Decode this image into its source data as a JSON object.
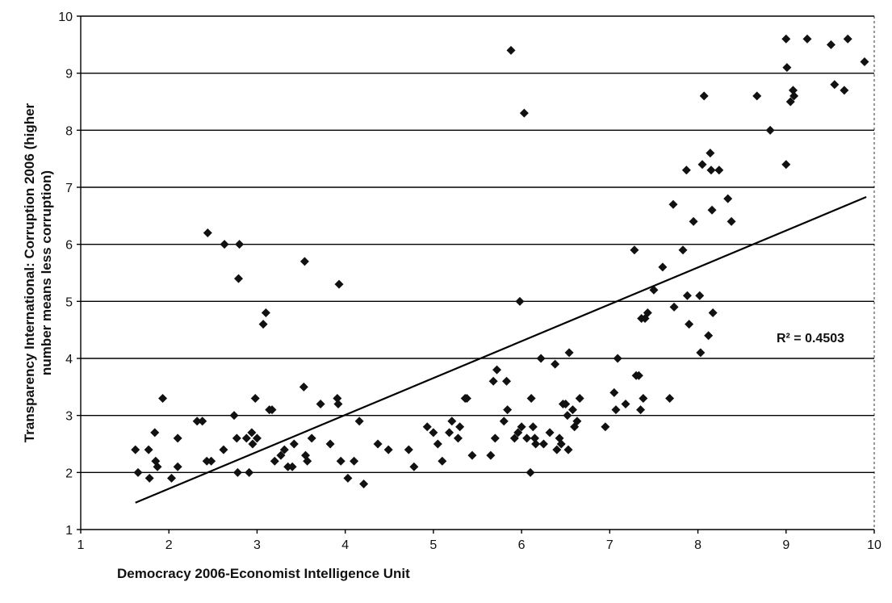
{
  "chart_data": {
    "type": "scatter",
    "title": "",
    "xlabel": "Democracy 2006-Economist Intelligence Unit",
    "ylabel_line1": "Transparency International: Corruption 2006 (higher",
    "ylabel_line2": "number means less corruption)",
    "xlim": [
      1,
      10
    ],
    "ylim": [
      1,
      10
    ],
    "xticks": [
      "1",
      "2",
      "3",
      "4",
      "5",
      "6",
      "7",
      "8",
      "9",
      "10"
    ],
    "yticks": [
      "1",
      "2",
      "3",
      "4",
      "5",
      "6",
      "7",
      "8",
      "9",
      "10"
    ],
    "grid": "horizontal",
    "marker_color": "#111111",
    "trendline": {
      "x": [
        1.62,
        9.91
      ],
      "y": [
        1.47,
        6.83
      ]
    },
    "r2_label": "R² = 0.4503",
    "points": [
      [
        1.62,
        2.4
      ],
      [
        1.65,
        2.0
      ],
      [
        1.77,
        2.4
      ],
      [
        1.78,
        1.9
      ],
      [
        1.84,
        2.7
      ],
      [
        1.85,
        2.2
      ],
      [
        1.87,
        2.1
      ],
      [
        1.93,
        3.3
      ],
      [
        2.03,
        1.9
      ],
      [
        2.1,
        2.6
      ],
      [
        2.1,
        2.1
      ],
      [
        2.32,
        2.9
      ],
      [
        2.38,
        2.9
      ],
      [
        2.43,
        2.2
      ],
      [
        2.48,
        2.2
      ],
      [
        2.44,
        6.2
      ],
      [
        2.62,
        2.4
      ],
      [
        2.63,
        6.0
      ],
      [
        2.74,
        3.0
      ],
      [
        2.77,
        2.6
      ],
      [
        2.78,
        2.0
      ],
      [
        2.79,
        5.4
      ],
      [
        2.8,
        6.0
      ],
      [
        2.88,
        2.6
      ],
      [
        2.91,
        2.0
      ],
      [
        2.94,
        2.7
      ],
      [
        2.95,
        2.5
      ],
      [
        2.98,
        3.3
      ],
      [
        3.0,
        2.6
      ],
      [
        3.07,
        4.6
      ],
      [
        3.1,
        4.8
      ],
      [
        3.14,
        3.1
      ],
      [
        3.17,
        3.1
      ],
      [
        3.2,
        2.2
      ],
      [
        3.27,
        2.3
      ],
      [
        3.31,
        2.4
      ],
      [
        3.35,
        2.1
      ],
      [
        3.4,
        2.1
      ],
      [
        3.42,
        2.5
      ],
      [
        3.53,
        3.5
      ],
      [
        3.54,
        5.7
      ],
      [
        3.55,
        2.3
      ],
      [
        3.57,
        2.2
      ],
      [
        3.62,
        2.6
      ],
      [
        3.72,
        3.2
      ],
      [
        3.83,
        2.5
      ],
      [
        3.91,
        3.3
      ],
      [
        3.92,
        3.2
      ],
      [
        3.93,
        5.3
      ],
      [
        3.95,
        2.2
      ],
      [
        4.03,
        1.9
      ],
      [
        4.1,
        2.2
      ],
      [
        4.16,
        2.9
      ],
      [
        4.21,
        1.8
      ],
      [
        4.37,
        2.5
      ],
      [
        4.49,
        2.4
      ],
      [
        4.72,
        2.4
      ],
      [
        4.78,
        2.1
      ],
      [
        4.93,
        2.8
      ],
      [
        5.0,
        2.7
      ],
      [
        5.05,
        2.5
      ],
      [
        5.1,
        2.2
      ],
      [
        5.18,
        2.7
      ],
      [
        5.21,
        2.9
      ],
      [
        5.28,
        2.6
      ],
      [
        5.3,
        2.8
      ],
      [
        5.36,
        3.3
      ],
      [
        5.38,
        3.3
      ],
      [
        5.44,
        2.3
      ],
      [
        5.65,
        2.3
      ],
      [
        5.68,
        3.6
      ],
      [
        5.7,
        2.6
      ],
      [
        5.72,
        3.8
      ],
      [
        5.8,
        2.9
      ],
      [
        5.83,
        3.6
      ],
      [
        5.84,
        3.1
      ],
      [
        5.88,
        9.4
      ],
      [
        5.92,
        2.6
      ],
      [
        5.96,
        2.7
      ],
      [
        5.98,
        5.0
      ],
      [
        6.0,
        2.8
      ],
      [
        6.03,
        8.3
      ],
      [
        6.06,
        2.6
      ],
      [
        6.1,
        2.0
      ],
      [
        6.11,
        3.3
      ],
      [
        6.13,
        2.8
      ],
      [
        6.15,
        2.6
      ],
      [
        6.16,
        2.5
      ],
      [
        6.22,
        4.0
      ],
      [
        6.25,
        2.5
      ],
      [
        6.32,
        2.7
      ],
      [
        6.38,
        3.9
      ],
      [
        6.4,
        2.4
      ],
      [
        6.43,
        2.6
      ],
      [
        6.45,
        2.5
      ],
      [
        6.47,
        3.2
      ],
      [
        6.5,
        3.2
      ],
      [
        6.52,
        3.0
      ],
      [
        6.53,
        2.4
      ],
      [
        6.54,
        4.1
      ],
      [
        6.58,
        3.1
      ],
      [
        6.6,
        2.8
      ],
      [
        6.63,
        2.9
      ],
      [
        6.66,
        3.3
      ],
      [
        6.95,
        2.8
      ],
      [
        7.05,
        3.4
      ],
      [
        7.07,
        3.1
      ],
      [
        7.09,
        4.0
      ],
      [
        7.18,
        3.2
      ],
      [
        7.28,
        5.9
      ],
      [
        7.3,
        3.7
      ],
      [
        7.33,
        3.7
      ],
      [
        7.35,
        3.1
      ],
      [
        7.36,
        4.7
      ],
      [
        7.38,
        3.3
      ],
      [
        7.4,
        4.7
      ],
      [
        7.43,
        4.8
      ],
      [
        7.68,
        3.3
      ],
      [
        7.72,
        6.7
      ],
      [
        7.73,
        4.9
      ],
      [
        7.5,
        5.2
      ],
      [
        7.6,
        5.6
      ],
      [
        7.83,
        5.9
      ],
      [
        7.87,
        7.3
      ],
      [
        7.88,
        5.1
      ],
      [
        7.9,
        4.6
      ],
      [
        7.95,
        6.4
      ],
      [
        8.02,
        5.1
      ],
      [
        8.03,
        4.1
      ],
      [
        8.05,
        7.4
      ],
      [
        8.07,
        8.6
      ],
      [
        8.12,
        4.4
      ],
      [
        8.14,
        7.6
      ],
      [
        8.15,
        7.3
      ],
      [
        8.16,
        6.6
      ],
      [
        8.17,
        4.8
      ],
      [
        8.24,
        7.3
      ],
      [
        8.34,
        6.8
      ],
      [
        8.38,
        6.4
      ],
      [
        8.67,
        8.6
      ],
      [
        8.82,
        8.0
      ],
      [
        9.0,
        9.6
      ],
      [
        9.0,
        7.4
      ],
      [
        9.01,
        9.1
      ],
      [
        9.05,
        8.5
      ],
      [
        9.08,
        8.7
      ],
      [
        9.09,
        8.6
      ],
      [
        9.24,
        9.6
      ],
      [
        9.51,
        9.5
      ],
      [
        9.55,
        8.8
      ],
      [
        9.66,
        8.7
      ],
      [
        9.7,
        9.6
      ],
      [
        9.89,
        9.2
      ]
    ]
  }
}
